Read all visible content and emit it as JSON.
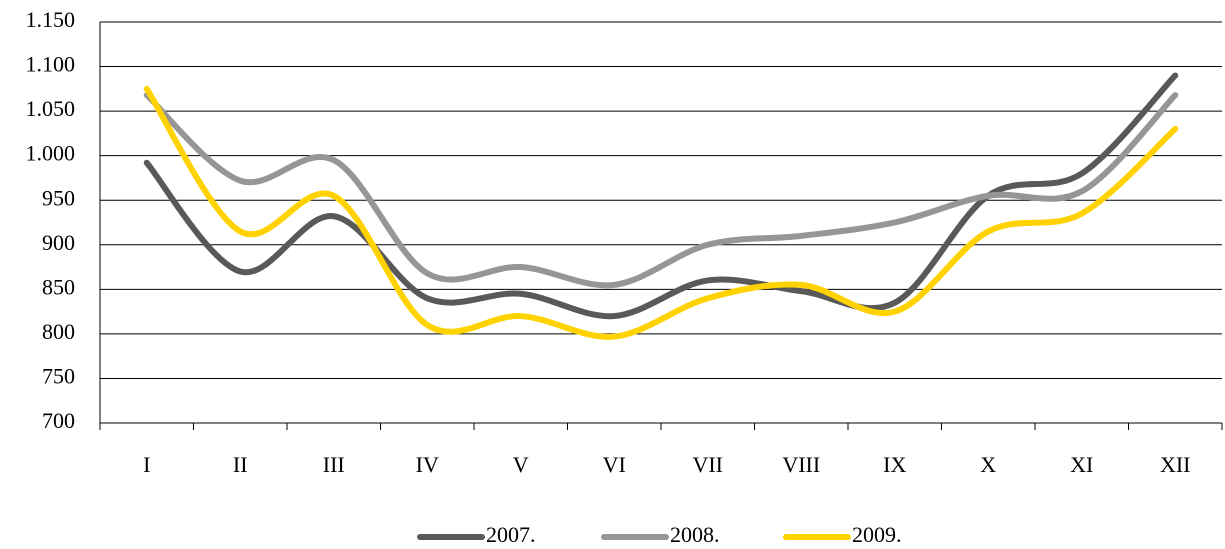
{
  "chart_data": {
    "type": "line",
    "categories": [
      "I",
      "II",
      "III",
      "IV",
      "V",
      "VI",
      "VII",
      "VIII",
      "IX",
      "X",
      "XI",
      "XII"
    ],
    "series": [
      {
        "name": "2007.",
        "color": "#595959",
        "values": [
          992,
          870,
          932,
          840,
          845,
          820,
          860,
          848,
          835,
          955,
          980,
          1090
        ]
      },
      {
        "name": "2008.",
        "color": "#969696",
        "values": [
          1068,
          972,
          995,
          868,
          875,
          855,
          900,
          910,
          925,
          955,
          960,
          1068
        ]
      },
      {
        "name": "2009.",
        "color": "#ffd200",
        "values": [
          1075,
          915,
          955,
          810,
          820,
          797,
          840,
          855,
          825,
          915,
          935,
          1030
        ]
      }
    ],
    "ylim": [
      700,
      1150
    ],
    "yticks": [
      700,
      750,
      800,
      850,
      900,
      950,
      {
        "value": 1000,
        "label": "1.000"
      },
      {
        "value": 1050,
        "label": "1.050"
      },
      {
        "value": 1100,
        "label": "1.100"
      },
      {
        "value": 1150,
        "label": "1.150"
      }
    ],
    "grid": true,
    "smooth": true,
    "legend": "bottom"
  }
}
